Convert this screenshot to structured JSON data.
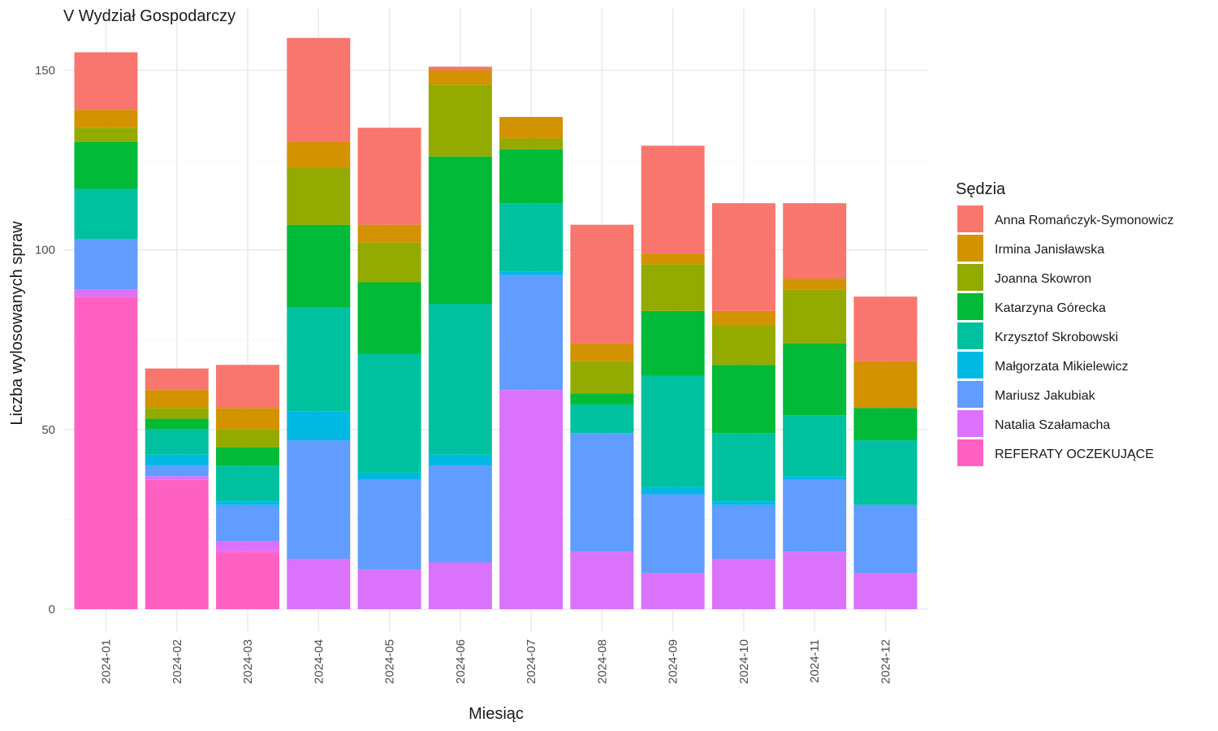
{
  "chart_data": {
    "type": "bar",
    "stacked": true,
    "title": "V Wydział Gospodarczy",
    "xlabel": "Miesiąc",
    "ylabel": "Liczba wylosowanych spraw",
    "ylim": [
      0,
      160
    ],
    "yticks": [
      0,
      50,
      100,
      150
    ],
    "grid": true,
    "legend_title": "Sędzia",
    "legend_position": "right",
    "categories": [
      "2024-01",
      "2024-02",
      "2024-03",
      "2024-04",
      "2024-05",
      "2024-06",
      "2024-07",
      "2024-08",
      "2024-09",
      "2024-10",
      "2024-11",
      "2024-12"
    ],
    "series": [
      {
        "name": "REFERATY OCZEKUJĄCE",
        "color": "#FF61C3",
        "values": [
          87,
          36,
          16,
          0,
          0,
          0,
          0,
          0,
          0,
          0,
          0,
          0
        ]
      },
      {
        "name": "Natalia Szałamacha",
        "color": "#DB72FB",
        "values": [
          2,
          1,
          3,
          14,
          11,
          13,
          61,
          16,
          10,
          14,
          16,
          10
        ]
      },
      {
        "name": "Mariusz Jakubiak",
        "color": "#619CFF",
        "values": [
          14,
          3,
          10,
          33,
          25,
          27,
          32,
          33,
          22,
          15,
          20,
          19
        ]
      },
      {
        "name": "Małgorzata Mikielewicz",
        "color": "#00B9E3",
        "values": [
          0,
          3,
          1,
          8,
          2,
          3,
          1,
          0,
          2,
          1,
          1,
          0
        ]
      },
      {
        "name": "Krzysztof Skrobowski",
        "color": "#00C19F",
        "values": [
          14,
          7,
          10,
          29,
          33,
          42,
          19,
          8,
          31,
          19,
          17,
          18
        ]
      },
      {
        "name": "Katarzyna Górecka",
        "color": "#00BA38",
        "values": [
          13,
          3,
          5,
          23,
          20,
          41,
          15,
          3,
          18,
          19,
          20,
          9
        ]
      },
      {
        "name": "Joanna Skowron",
        "color": "#93AA00",
        "values": [
          4,
          3,
          5,
          16,
          11,
          20,
          3,
          9,
          13,
          11,
          15,
          0
        ]
      },
      {
        "name": "Irmina Janisławska",
        "color": "#D39200",
        "values": [
          5,
          5,
          6,
          7,
          5,
          4,
          6,
          5,
          3,
          4,
          3,
          13
        ]
      },
      {
        "name": "Anna Romańczyk-Symonowicz",
        "color": "#F8766D",
        "values": [
          16,
          6,
          12,
          29,
          27,
          1,
          0,
          33,
          30,
          30,
          21,
          18
        ]
      }
    ]
  }
}
